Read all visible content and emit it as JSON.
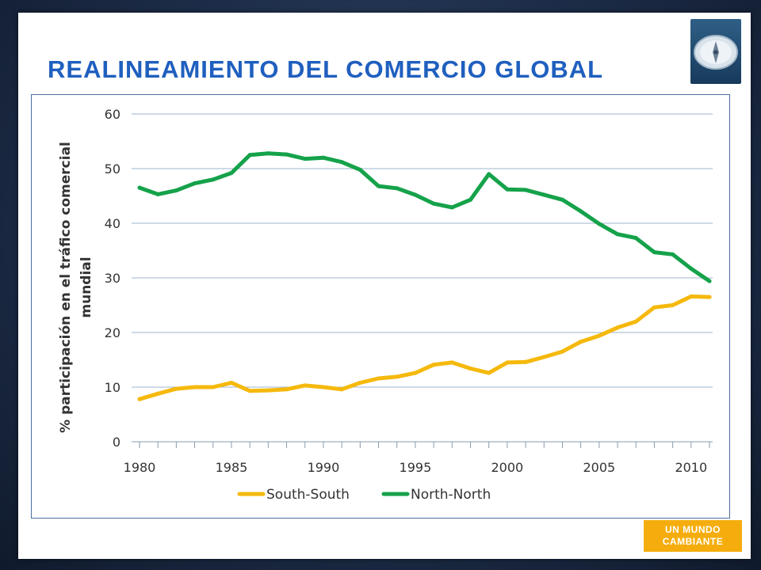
{
  "slide": {
    "title": "REALINEAMIENTO DEL COMERCIO GLOBAL",
    "badge_line1": "UN MUNDO",
    "badge_line2": "CAMBIANTE"
  },
  "colors": {
    "title": "#1f5fbf",
    "south_south": "#f5b90d",
    "north_north": "#15a24a",
    "badge": "#f5ad0d"
  },
  "chart_data": {
    "type": "line",
    "title": "",
    "xlabel": "",
    "ylabel_lines": [
      "% participación en el tráfico comercial",
      "mundial"
    ],
    "ylim": [
      0,
      60
    ],
    "yticks": [
      0,
      10,
      20,
      30,
      40,
      50,
      60
    ],
    "xlim": [
      1980,
      2011
    ],
    "xtick_labels": [
      "1980",
      "1985",
      "1990",
      "1995",
      "2000",
      "2005",
      "2010"
    ],
    "grid": true,
    "legend_position": "bottom",
    "x": [
      1980,
      1981,
      1982,
      1983,
      1984,
      1985,
      1986,
      1987,
      1988,
      1989,
      1990,
      1991,
      1992,
      1993,
      1994,
      1995,
      1996,
      1997,
      1998,
      1999,
      2000,
      2001,
      2002,
      2003,
      2004,
      2005,
      2006,
      2007,
      2008,
      2009,
      2010,
      2011
    ],
    "series": [
      {
        "name": "South-South",
        "color": "#f5b90d",
        "values": [
          7.8,
          8.8,
          9.7,
          10.0,
          10.0,
          10.8,
          9.3,
          9.4,
          9.6,
          10.3,
          10.0,
          9.6,
          10.8,
          11.6,
          11.9,
          12.6,
          14.1,
          14.5,
          13.4,
          12.6,
          14.5,
          14.6,
          15.5,
          16.5,
          18.3,
          19.4,
          20.9,
          22.0,
          24.6,
          25.0,
          26.6,
          26.5
        ]
      },
      {
        "name": "North-North",
        "color": "#15a24a",
        "values": [
          46.5,
          45.3,
          46.0,
          47.3,
          48.0,
          49.2,
          52.5,
          52.8,
          52.6,
          51.8,
          52.0,
          51.2,
          49.8,
          46.8,
          46.4,
          45.2,
          43.6,
          42.9,
          44.3,
          49.0,
          46.2,
          46.1,
          45.2,
          44.3,
          42.2,
          39.9,
          38.0,
          37.3,
          34.7,
          34.3,
          31.7,
          29.4
        ]
      }
    ]
  }
}
